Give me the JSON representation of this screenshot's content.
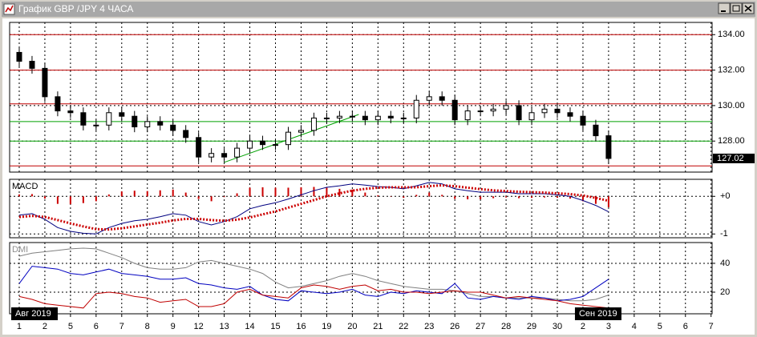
{
  "window": {
    "title": "График GBP /JPY  4 ЧАСА"
  },
  "chart_data": [
    {
      "type": "candlestick",
      "x": [
        0,
        0.5,
        1,
        1.5,
        2,
        2.5,
        3,
        3.5,
        4,
        4.5,
        5,
        5.5,
        6,
        6.5,
        7,
        7.5,
        8,
        8.5,
        9,
        9.5,
        10,
        10.5,
        11,
        11.5,
        12,
        12.5,
        13,
        13.5,
        14,
        14.5,
        15,
        15.5,
        16,
        16.5,
        17,
        17.5,
        18,
        18.5,
        19,
        19.5,
        20,
        20.5,
        21,
        21.5,
        22,
        22.5,
        23
      ],
      "open": [
        133.0,
        132.5,
        132.1,
        130.5,
        129.7,
        129.6,
        128.9,
        128.9,
        129.6,
        129.4,
        128.8,
        129.1,
        128.9,
        128.6,
        128.2,
        127.1,
        127.3,
        127.1,
        127.6,
        128.0,
        127.8,
        127.8,
        128.5,
        128.6,
        129.3,
        129.3,
        129.4,
        129.4,
        129.2,
        129.4,
        129.3,
        129.3,
        130.3,
        130.5,
        130.3,
        129.2,
        129.7,
        129.7,
        129.8,
        130.0,
        129.2,
        129.6,
        129.8,
        129.6,
        129.4,
        128.9,
        128.3
      ],
      "high": [
        133.3,
        132.8,
        132.4,
        130.8,
        130.0,
        129.9,
        129.2,
        129.9,
        129.9,
        129.7,
        129.4,
        129.4,
        129.2,
        128.9,
        128.5,
        127.6,
        127.6,
        127.9,
        128.3,
        128.3,
        128.1,
        128.8,
        128.9,
        129.6,
        129.6,
        129.7,
        129.7,
        129.7,
        129.7,
        129.7,
        129.6,
        130.6,
        130.8,
        130.8,
        130.6,
        130.0,
        130.0,
        130.1,
        130.3,
        130.3,
        129.9,
        130.1,
        130.1,
        129.9,
        129.7,
        129.2,
        128.6
      ],
      "low": [
        132.2,
        131.8,
        130.2,
        129.4,
        129.3,
        128.6,
        128.6,
        128.6,
        129.1,
        128.5,
        128.5,
        128.6,
        128.3,
        127.9,
        126.8,
        126.8,
        126.8,
        126.8,
        127.3,
        127.5,
        127.5,
        127.5,
        128.2,
        128.3,
        129.0,
        129.0,
        129.1,
        128.9,
        128.9,
        129.0,
        129.0,
        129.0,
        130.0,
        130.0,
        128.9,
        128.9,
        129.4,
        129.4,
        129.5,
        128.9,
        128.9,
        129.3,
        129.3,
        129.1,
        128.6,
        128.0,
        126.72
      ],
      "close": [
        132.5,
        132.1,
        130.5,
        129.7,
        129.6,
        128.9,
        128.9,
        129.6,
        129.4,
        128.8,
        129.1,
        128.9,
        128.6,
        128.2,
        127.1,
        127.3,
        127.1,
        127.6,
        128.0,
        127.8,
        127.8,
        128.5,
        128.6,
        129.3,
        129.3,
        129.4,
        129.4,
        129.2,
        129.4,
        129.3,
        129.3,
        130.3,
        130.5,
        130.3,
        129.2,
        129.7,
        129.7,
        129.8,
        130.0,
        129.2,
        129.6,
        129.8,
        129.6,
        129.4,
        128.9,
        128.3,
        127.02
      ],
      "up_color": "#ffffff",
      "down_color": "#000000",
      "xlim": [
        -0.375,
        27.04
      ],
      "xticks": [
        {
          "value": 0,
          "label": "1"
        },
        {
          "value": 1,
          "label": "2"
        },
        {
          "value": 2,
          "label": "5"
        },
        {
          "value": 3,
          "label": "6"
        },
        {
          "value": 4,
          "label": "7"
        },
        {
          "value": 5,
          "label": "8"
        },
        {
          "value": 6,
          "label": "9"
        },
        {
          "value": 7,
          "label": "12"
        },
        {
          "value": 8,
          "label": "13"
        },
        {
          "value": 9,
          "label": "14"
        },
        {
          "value": 10,
          "label": "15"
        },
        {
          "value": 11,
          "label": "16"
        },
        {
          "value": 12,
          "label": "19"
        },
        {
          "value": 13,
          "label": "20"
        },
        {
          "value": 14,
          "label": "21"
        },
        {
          "value": 15,
          "label": "22"
        },
        {
          "value": 16,
          "label": "23"
        },
        {
          "value": 17,
          "label": "26"
        },
        {
          "value": 18,
          "label": "27"
        },
        {
          "value": 19,
          "label": "28"
        },
        {
          "value": 20,
          "label": "29"
        },
        {
          "value": 21,
          "label": "30"
        },
        {
          "value": 22,
          "label": "2"
        },
        {
          "value": 23,
          "label": "3"
        },
        {
          "value": 24,
          "label": "4"
        },
        {
          "value": 25,
          "label": "5"
        },
        {
          "value": 26,
          "label": "6"
        },
        {
          "value": 27,
          "label": "7"
        }
      ],
      "annotations": [
        {
          "x": 0,
          "text": "Авг 2019"
        },
        {
          "x": 22,
          "text": "Сен 2019"
        }
      ],
      "ylim": [
        126.25,
        134.6
      ],
      "yticks": [
        {
          "value": 134,
          "label": "134.00"
        },
        {
          "value": 132,
          "label": "132.00"
        },
        {
          "value": 130,
          "label": "130.00"
        },
        {
          "value": 128,
          "label": "128.00"
        }
      ],
      "last_price": {
        "value": 127.02,
        "label": "127.02"
      },
      "levels": [
        {
          "value": 134,
          "color": "#c00000"
        },
        {
          "value": 132,
          "color": "#c00000"
        },
        {
          "value": 130.1,
          "color": "#c00000"
        },
        {
          "value": 129.1,
          "color": "#00a000"
        },
        {
          "value": 128,
          "color": "#00a000"
        },
        {
          "value": 126.6,
          "color": "#c00000"
        }
      ],
      "trendline": {
        "x": [
          8,
          13.25
        ],
        "y": [
          126.8,
          129.5
        ],
        "color": "#00a000"
      },
      "grid": true
    },
    {
      "type": "line",
      "title": "MACD",
      "ylim": [
        -1.1,
        0.41
      ],
      "yticks": [
        {
          "value": 0,
          "label": "+0"
        },
        -1
      ],
      "series": [
        {
          "color": "#cc0000",
          "style": "bar",
          "values": [
            0.05,
            0.06,
            -0.06,
            -0.2,
            -0.21,
            -0.18,
            -0.13,
            0.05,
            0.13,
            0.15,
            0.14,
            0.16,
            0.18,
            0.1,
            -0.07,
            -0.13,
            -0.02,
            0.08,
            0.23,
            0.24,
            0.23,
            0.23,
            0.24,
            0.25,
            0.24,
            0.2,
            0.18,
            0.1,
            0.03,
            0,
            -0.04,
            0.04,
            0.1,
            0.04,
            -0.07,
            -0.08,
            -0.08,
            -0.05,
            -0.03,
            -0.05,
            -0.04,
            -0.03,
            -0.04,
            -0.06,
            -0.13,
            -0.2,
            -0.29
          ]
        },
        {
          "color": "#000080",
          "style": "solid",
          "values": [
            -0.5,
            -0.46,
            -0.61,
            -0.83,
            -0.93,
            -0.98,
            -1.0,
            -0.83,
            -0.72,
            -0.65,
            -0.61,
            -0.54,
            -0.46,
            -0.5,
            -0.67,
            -0.76,
            -0.67,
            -0.54,
            -0.33,
            -0.24,
            -0.17,
            -0.07,
            0.04,
            0.15,
            0.24,
            0.28,
            0.33,
            0.3,
            0.26,
            0.24,
            0.2,
            0.28,
            0.37,
            0.33,
            0.2,
            0.15,
            0.11,
            0.11,
            0.11,
            0.07,
            0.07,
            0.07,
            0.04,
            0,
            -0.11,
            -0.24,
            -0.41
          ]
        },
        {
          "color": "#cc0000",
          "style": "dotted",
          "values": [
            -0.55,
            -0.52,
            -0.55,
            -0.63,
            -0.72,
            -0.8,
            -0.87,
            -0.88,
            -0.85,
            -0.8,
            -0.75,
            -0.7,
            -0.64,
            -0.6,
            -0.6,
            -0.63,
            -0.65,
            -0.62,
            -0.56,
            -0.48,
            -0.4,
            -0.3,
            -0.2,
            -0.1,
            0.0,
            0.08,
            0.15,
            0.2,
            0.23,
            0.24,
            0.24,
            0.24,
            0.27,
            0.29,
            0.27,
            0.23,
            0.19,
            0.16,
            0.14,
            0.12,
            0.11,
            0.1,
            0.08,
            0.06,
            0.02,
            -0.04,
            -0.12
          ]
        }
      ],
      "grid": true
    },
    {
      "type": "line",
      "title": "DMI",
      "ylim": [
        5,
        53.3
      ],
      "yticks": [
        40,
        20
      ],
      "series": [
        {
          "color": "#808080",
          "style": "solid",
          "values": [
            45,
            47,
            48,
            49,
            50,
            50.5,
            50,
            47,
            44,
            40,
            37,
            36,
            36,
            37,
            41,
            42,
            40,
            38,
            36,
            33,
            27,
            23,
            24,
            26,
            28,
            31,
            33,
            31,
            28,
            26,
            24,
            23,
            22,
            22,
            21,
            19,
            17,
            17,
            16,
            16,
            16,
            16,
            15,
            14,
            14,
            15,
            18
          ]
        },
        {
          "color": "#0000c0",
          "style": "solid",
          "values": [
            26,
            38,
            37,
            36,
            33,
            32,
            34,
            36,
            33,
            32,
            31,
            29,
            29,
            30,
            26,
            25,
            23,
            22,
            24,
            18,
            15,
            14,
            21,
            20,
            19,
            20,
            22,
            18,
            17,
            20,
            19,
            21,
            20,
            19,
            26,
            16,
            15,
            17,
            16,
            15,
            17,
            16,
            14,
            15,
            17,
            23,
            29
          ]
        },
        {
          "color": "#c00000",
          "style": "solid",
          "values": [
            17,
            15,
            12,
            11,
            10,
            9,
            19,
            20,
            19,
            17,
            16,
            13,
            14,
            15,
            10,
            10,
            12,
            20,
            22,
            18,
            17,
            16,
            23,
            25,
            24,
            22,
            24,
            25,
            21,
            22,
            20,
            20,
            19,
            20,
            21,
            20,
            20,
            18,
            16,
            17,
            16,
            15,
            14,
            12,
            11,
            10,
            9
          ]
        }
      ],
      "grid": true
    }
  ]
}
